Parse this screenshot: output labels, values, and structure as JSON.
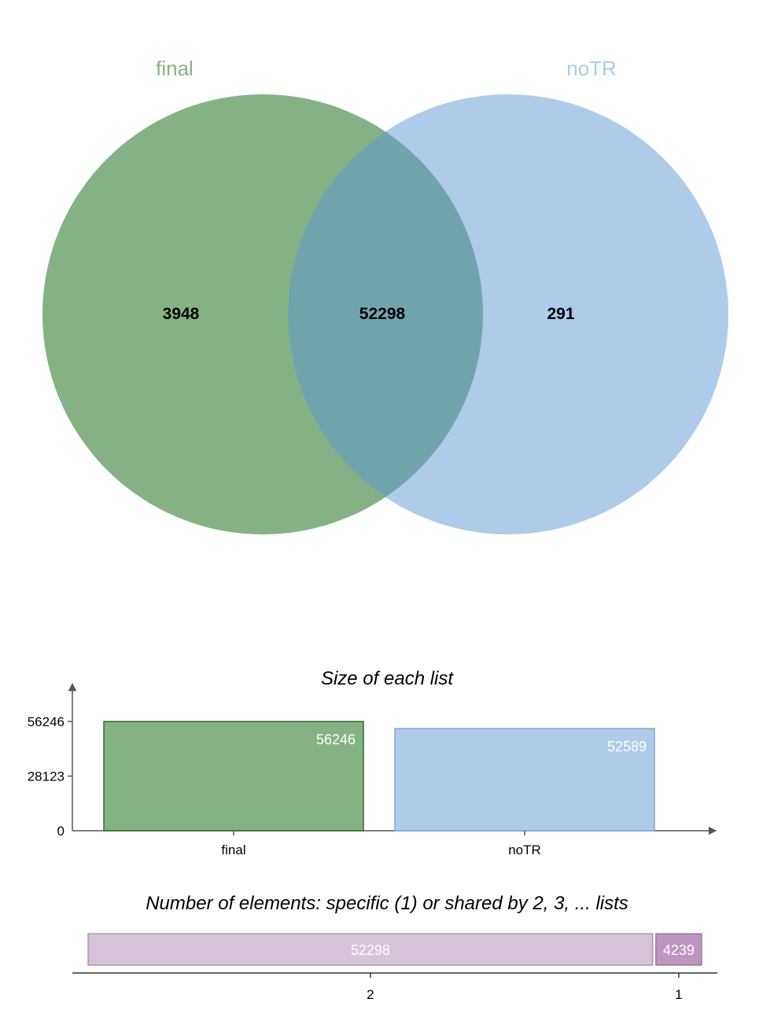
{
  "colors": {
    "final": "#85b285",
    "final_border": "#2f6b2f",
    "noTR": "#aecce9",
    "noTR_border": "#7fa8d2",
    "overlap": "#71a5ac",
    "shared": "#d7c3d9",
    "shared_border": "#9a8a9c",
    "specific": "#bd96bf",
    "specific_border": "#8a6a8c",
    "axis": "#555555"
  },
  "chart_data": [
    {
      "type": "venn",
      "sets": [
        {
          "name": "final",
          "only": 3948
        },
        {
          "name": "noTR",
          "only": 291
        }
      ],
      "intersection": 52298
    },
    {
      "type": "bar",
      "title": "Size of each list",
      "categories": [
        "final",
        "noTR"
      ],
      "values": [
        56246,
        52589
      ],
      "yticks": [
        0,
        28123,
        56246
      ],
      "ylim": [
        0,
        56246
      ]
    },
    {
      "type": "bar",
      "orientation": "horizontal-stacked",
      "title": "Number of elements: specific (1) or shared by 2, 3, ... lists",
      "categories": [
        "2",
        "1"
      ],
      "values": [
        52298,
        4239
      ]
    }
  ]
}
